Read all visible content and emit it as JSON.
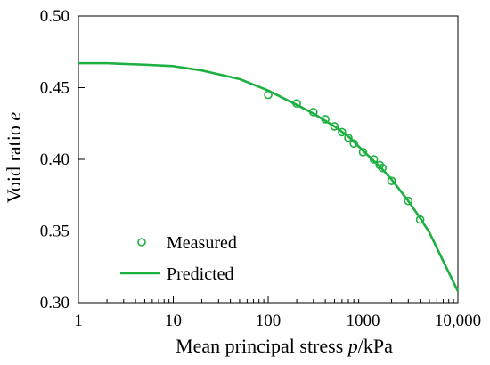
{
  "chart_data": {
    "type": "scatter",
    "x_scale": "log",
    "xlim": [
      1,
      10000
    ],
    "ylim": [
      0.3,
      0.5
    ],
    "x_ticks": [
      1,
      10,
      100,
      1000,
      10000
    ],
    "x_tick_labels": [
      "1",
      "10",
      "100",
      "1000",
      "10,000"
    ],
    "y_ticks": [
      0.3,
      0.35,
      0.4,
      0.45,
      0.5
    ],
    "y_tick_labels": [
      "0.30",
      "0.35",
      "0.40",
      "0.45",
      "0.50"
    ],
    "xlabel": {
      "prefix": "Mean principal stress ",
      "var": "p",
      "suffix": "/kPa"
    },
    "ylabel": {
      "prefix": "Void ratio ",
      "var": "e"
    },
    "grid": false,
    "legend_position": "bottom-left",
    "series": [
      {
        "name": "Measured",
        "type": "scatter",
        "marker": "open-circle",
        "color": "#1cb040",
        "points": [
          [
            100,
            0.445
          ],
          [
            200,
            0.439
          ],
          [
            300,
            0.433
          ],
          [
            400,
            0.428
          ],
          [
            500,
            0.423
          ],
          [
            600,
            0.419
          ],
          [
            700,
            0.415
          ],
          [
            800,
            0.411
          ],
          [
            1000,
            0.405
          ],
          [
            1300,
            0.4
          ],
          [
            1500,
            0.396
          ],
          [
            1600,
            0.394
          ],
          [
            2000,
            0.385
          ],
          [
            3000,
            0.371
          ],
          [
            4000,
            0.358
          ]
        ]
      },
      {
        "name": "Predicted",
        "type": "line",
        "color": "#1cb040",
        "points": [
          [
            1,
            0.467
          ],
          [
            2,
            0.467
          ],
          [
            5,
            0.466
          ],
          [
            10,
            0.465
          ],
          [
            20,
            0.462
          ],
          [
            50,
            0.456
          ],
          [
            100,
            0.448
          ],
          [
            200,
            0.438
          ],
          [
            300,
            0.432
          ],
          [
            500,
            0.423
          ],
          [
            700,
            0.416
          ],
          [
            1000,
            0.406
          ],
          [
            1500,
            0.395
          ],
          [
            2000,
            0.386
          ],
          [
            3000,
            0.371
          ],
          [
            4000,
            0.359
          ],
          [
            5000,
            0.349
          ],
          [
            7000,
            0.329
          ],
          [
            10000,
            0.308
          ]
        ]
      }
    ]
  }
}
